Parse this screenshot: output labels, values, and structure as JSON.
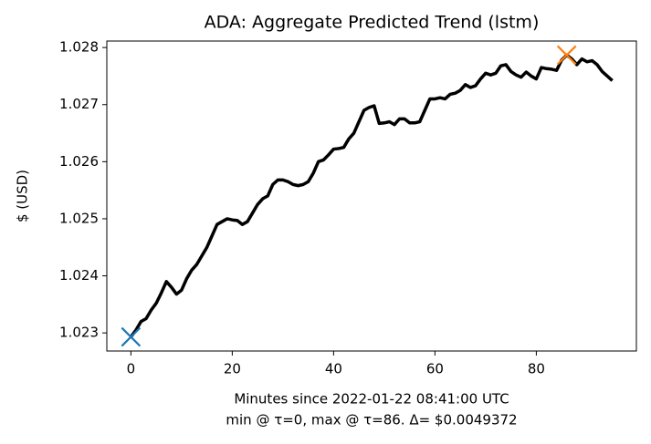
{
  "chart_data": {
    "type": "line",
    "title": "ADA: Aggregate Predicted Trend (lstm)",
    "xlabel": "Minutes since 2022-01-22 08:41:00 UTC",
    "annotation": "min @ τ=0, max @ τ=86. Δ= $0.0049372",
    "ylabel": "$ (USD)",
    "x": [
      0,
      1,
      2,
      3,
      4,
      5,
      6,
      7,
      8,
      9,
      10,
      11,
      12,
      13,
      14,
      15,
      16,
      17,
      18,
      19,
      20,
      21,
      22,
      23,
      24,
      25,
      26,
      27,
      28,
      29,
      30,
      31,
      32,
      33,
      34,
      35,
      36,
      37,
      38,
      39,
      40,
      41,
      42,
      43,
      44,
      45,
      46,
      47,
      48,
      49,
      50,
      51,
      52,
      53,
      54,
      55,
      56,
      57,
      58,
      59,
      60,
      61,
      62,
      63,
      64,
      65,
      66,
      67,
      68,
      69,
      70,
      71,
      72,
      73,
      74,
      75,
      76,
      77,
      78,
      79,
      80,
      81,
      82,
      83,
      84,
      85,
      86,
      87,
      88,
      89,
      90,
      91,
      92,
      93,
      94,
      95
    ],
    "series": [
      {
        "color": "#000000",
        "values": [
          1.02293,
          1.02305,
          1.0232,
          1.02325,
          1.0234,
          1.02352,
          1.0237,
          1.0239,
          1.0238,
          1.02368,
          1.02375,
          1.02395,
          1.0241,
          1.0242,
          1.02435,
          1.0245,
          1.0247,
          1.0249,
          1.02495,
          1.025,
          1.02498,
          1.02497,
          1.0249,
          1.02495,
          1.0251,
          1.02525,
          1.02535,
          1.0254,
          1.0256,
          1.02568,
          1.02568,
          1.02565,
          1.0256,
          1.02558,
          1.0256,
          1.02565,
          1.0258,
          1.026,
          1.02603,
          1.02612,
          1.02622,
          1.02623,
          1.02625,
          1.0264,
          1.0265,
          1.0267,
          1.0269,
          1.02695,
          1.02698,
          1.02667,
          1.02668,
          1.0267,
          1.02665,
          1.02675,
          1.02675,
          1.02668,
          1.02668,
          1.0267,
          1.0269,
          1.0271,
          1.0271,
          1.02712,
          1.0271,
          1.02718,
          1.0272,
          1.02725,
          1.02735,
          1.0273,
          1.02733,
          1.02745,
          1.02755,
          1.02752,
          1.02755,
          1.02768,
          1.0277,
          1.02758,
          1.02752,
          1.02748,
          1.02757,
          1.0275,
          1.02745,
          1.02765,
          1.02763,
          1.02762,
          1.0276,
          1.02778,
          1.0278672,
          1.0278,
          1.0277,
          1.0278,
          1.02775,
          1.02777,
          1.0277,
          1.02758,
          1.0275,
          1.02742
        ]
      }
    ],
    "markers": [
      {
        "x": 0,
        "y": 1.02293,
        "color": "#1f77b4"
      },
      {
        "x": 86,
        "y": 1.0278672,
        "color": "#ff7f0e"
      }
    ],
    "xlim": [
      -4.75,
      99.75
    ],
    "ylim": [
      1.022683,
      1.028114
    ],
    "xticks": [
      0,
      20,
      40,
      60,
      80
    ],
    "yticks": [
      1.023,
      1.024,
      1.025,
      1.026,
      1.027,
      1.028
    ]
  }
}
